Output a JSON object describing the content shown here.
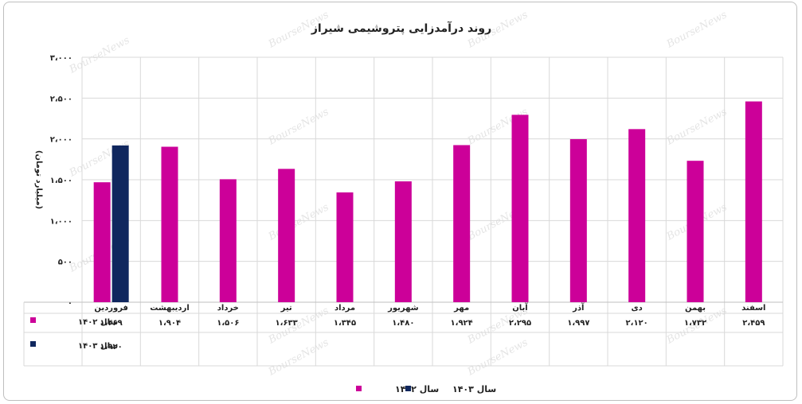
{
  "chart_data": {
    "type": "bar",
    "title": "روند درآمدزایی پتروشیمی شیراز",
    "ylabel": "(میلیارد تومان)",
    "ylim": [
      0,
      3000
    ],
    "yticks": [
      0,
      500,
      1000,
      1500,
      2000,
      2500,
      3000
    ],
    "ytick_labels": [
      "۰",
      "۵۰۰",
      "۱،۰۰۰",
      "۱،۵۰۰",
      "۲،۰۰۰",
      "۲،۵۰۰",
      "۳،۰۰۰"
    ],
    "categories": [
      "فروردین",
      "اردیبهشت",
      "خرداد",
      "تیر",
      "مرداد",
      "شهریور",
      "مهر",
      "آبان",
      "آذر",
      "دی",
      "بهمن",
      "اسفند"
    ],
    "series": [
      {
        "name": "سال ۱۴۰۲",
        "color": "#cc0099",
        "values": [
          1469,
          1904,
          1506,
          1633,
          1345,
          1480,
          1924,
          2295,
          1997,
          2120,
          1732,
          2459
        ],
        "labels": [
          "۱،۴۶۹",
          "۱،۹۰۴",
          "۱،۵۰۶",
          "۱،۶۳۳",
          "۱،۳۴۵",
          "۱،۴۸۰",
          "۱،۹۲۴",
          "۲،۲۹۵",
          "۱،۹۹۷",
          "۲،۱۲۰",
          "۱،۷۳۲",
          "۲،۴۵۹"
        ]
      },
      {
        "name": "سال ۱۴۰۳",
        "color": "#10275e",
        "values": [
          1920,
          null,
          null,
          null,
          null,
          null,
          null,
          null,
          null,
          null,
          null,
          null
        ],
        "labels": [
          "۱،۹۲۰",
          "",
          "",
          "",
          "",
          "",
          "",
          "",
          "",
          "",
          "",
          ""
        ]
      }
    ],
    "grid": true,
    "legend": "bottom",
    "watermark": "BourseNews"
  }
}
